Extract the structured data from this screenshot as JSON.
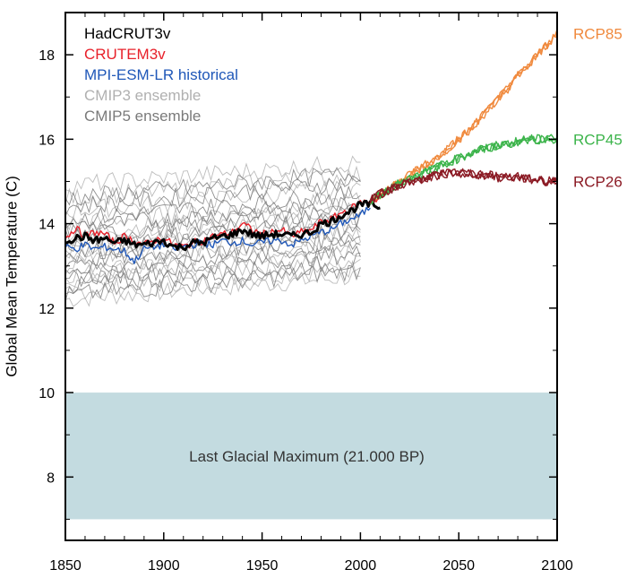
{
  "chart_data": {
    "type": "line",
    "title": "",
    "xlabel": "",
    "ylabel": "Global Mean Temperature (C)",
    "xlim": [
      1850,
      2100
    ],
    "ylim": [
      6.5,
      19.0
    ],
    "x_ticks": [
      1850,
      1900,
      1950,
      2000,
      2050,
      2100
    ],
    "y_ticks": [
      8,
      10,
      12,
      14,
      16,
      18
    ],
    "grid": false,
    "legend_position": "top-left",
    "legend": [
      {
        "label": "HadCRUT3v",
        "color": "#000000"
      },
      {
        "label": "CRUTEM3v",
        "color": "#e8202a"
      },
      {
        "label": "MPI-ESM-LR historical",
        "color": "#1f57b8"
      },
      {
        "label": "CMIP3 ensemble",
        "color": "#b0b0b0"
      },
      {
        "label": "CMIP5 ensemble",
        "color": "#7a7a7a"
      }
    ],
    "shaded_region": {
      "label": "Last Glacial Maximum (21.000 BP)",
      "x_range": [
        1850,
        2100
      ],
      "y_range": [
        7.0,
        10.0
      ],
      "color": "#c3dbe0"
    },
    "ensembles": [
      {
        "name": "CMIP3 ensemble",
        "color": "#b0b0b0",
        "x_start": 1850,
        "x_end": 2000,
        "start_values": [
          12.2,
          12.4,
          12.6,
          12.8,
          13.0,
          13.2,
          13.4,
          13.6,
          13.8,
          14.0,
          14.3,
          14.6,
          14.9
        ],
        "warming": 0.55
      },
      {
        "name": "CMIP5 ensemble",
        "color": "#7a7a7a",
        "x_start": 1850,
        "x_end": 2000,
        "start_values": [
          12.3,
          12.5,
          12.7,
          12.9,
          13.1,
          13.3,
          13.5,
          13.7,
          13.9,
          14.1,
          14.4,
          14.6
        ],
        "warming": 0.6
      }
    ],
    "series": [
      {
        "name": "CRUTEM3v",
        "color": "#e8202a",
        "x": [
          1850,
          1855,
          1860,
          1865,
          1870,
          1875,
          1880,
          1885,
          1890,
          1895,
          1900,
          1905,
          1910,
          1915,
          1920,
          1925,
          1930,
          1935,
          1940,
          1945,
          1950,
          1955,
          1960,
          1965,
          1970,
          1975,
          1980,
          1985,
          1990,
          1995,
          2000,
          2005,
          2010
        ],
        "values": [
          13.65,
          13.9,
          13.7,
          13.8,
          13.75,
          13.55,
          13.7,
          13.6,
          13.5,
          13.6,
          13.65,
          13.5,
          13.45,
          13.55,
          13.6,
          13.7,
          13.75,
          13.8,
          14.0,
          13.85,
          13.75,
          13.8,
          13.85,
          13.7,
          13.8,
          13.85,
          14.05,
          14.1,
          14.25,
          14.35,
          14.5,
          14.55,
          14.6
        ]
      },
      {
        "name": "MPI-ESM-LR historical",
        "color": "#1f57b8",
        "x": [
          1850,
          1855,
          1860,
          1865,
          1870,
          1875,
          1880,
          1885,
          1890,
          1895,
          1900,
          1905,
          1910,
          1915,
          1920,
          1925,
          1930,
          1935,
          1940,
          1945,
          1950,
          1955,
          1960,
          1965,
          1970,
          1975,
          1980,
          1985,
          1990,
          1995,
          2000,
          2005
        ],
        "values": [
          13.45,
          13.4,
          13.5,
          13.4,
          13.45,
          13.4,
          13.35,
          13.1,
          13.4,
          13.45,
          13.5,
          13.4,
          13.45,
          13.5,
          13.55,
          13.5,
          13.6,
          13.55,
          13.6,
          13.5,
          13.55,
          13.6,
          13.6,
          13.5,
          13.6,
          13.7,
          13.8,
          13.85,
          14.0,
          14.1,
          14.2,
          14.4
        ]
      },
      {
        "name": "HadCRUT3v",
        "color": "#000000",
        "x": [
          1850,
          1855,
          1860,
          1865,
          1870,
          1875,
          1880,
          1885,
          1890,
          1895,
          1900,
          1905,
          1910,
          1915,
          1920,
          1925,
          1930,
          1935,
          1940,
          1945,
          1950,
          1955,
          1960,
          1965,
          1970,
          1975,
          1980,
          1985,
          1990,
          1995,
          2000,
          2005,
          2010
        ],
        "values": [
          13.6,
          13.65,
          13.7,
          13.6,
          13.65,
          13.55,
          13.6,
          13.5,
          13.5,
          13.55,
          13.6,
          13.45,
          13.45,
          13.55,
          13.55,
          13.65,
          13.7,
          13.75,
          13.85,
          13.75,
          13.7,
          13.75,
          13.75,
          13.7,
          13.75,
          13.8,
          14.0,
          14.05,
          14.2,
          14.3,
          14.45,
          14.45,
          14.4
        ]
      },
      {
        "name": "RCP85",
        "color": "#f08a3e",
        "x": [
          2005,
          2010,
          2015,
          2020,
          2025,
          2030,
          2035,
          2040,
          2045,
          2050,
          2055,
          2060,
          2065,
          2070,
          2075,
          2080,
          2085,
          2090,
          2095,
          2100
        ],
        "values": [
          14.55,
          14.7,
          14.85,
          15.0,
          15.15,
          15.3,
          15.45,
          15.6,
          15.8,
          16.0,
          16.2,
          16.45,
          16.7,
          16.95,
          17.2,
          17.5,
          17.75,
          18.0,
          18.25,
          18.5
        ]
      },
      {
        "name": "RCP45",
        "color": "#3cb44b",
        "x": [
          2005,
          2010,
          2015,
          2020,
          2025,
          2030,
          2035,
          2040,
          2045,
          2050,
          2055,
          2060,
          2065,
          2070,
          2075,
          2080,
          2085,
          2090,
          2095,
          2100
        ],
        "values": [
          14.55,
          14.7,
          14.85,
          14.95,
          15.05,
          15.15,
          15.25,
          15.35,
          15.45,
          15.55,
          15.65,
          15.75,
          15.8,
          15.85,
          15.9,
          15.95,
          16.0,
          16.0,
          16.0,
          16.0
        ]
      },
      {
        "name": "RCP26",
        "color": "#8b1a24",
        "x": [
          2005,
          2010,
          2015,
          2020,
          2025,
          2030,
          2035,
          2040,
          2045,
          2050,
          2055,
          2060,
          2065,
          2070,
          2075,
          2080,
          2085,
          2090,
          2095,
          2100
        ],
        "values": [
          14.55,
          14.7,
          14.8,
          14.9,
          15.0,
          15.05,
          15.1,
          15.15,
          15.2,
          15.2,
          15.2,
          15.15,
          15.15,
          15.1,
          15.1,
          15.1,
          15.05,
          15.05,
          15.0,
          15.0
        ]
      }
    ],
    "scenario_labels": [
      {
        "label": "RCP85",
        "color": "#f08a3e",
        "value": 18.5
      },
      {
        "label": "RCP45",
        "color": "#3cb44b",
        "value": 16.0
      },
      {
        "label": "RCP26",
        "color": "#8b1a24",
        "value": 15.0
      }
    ]
  }
}
